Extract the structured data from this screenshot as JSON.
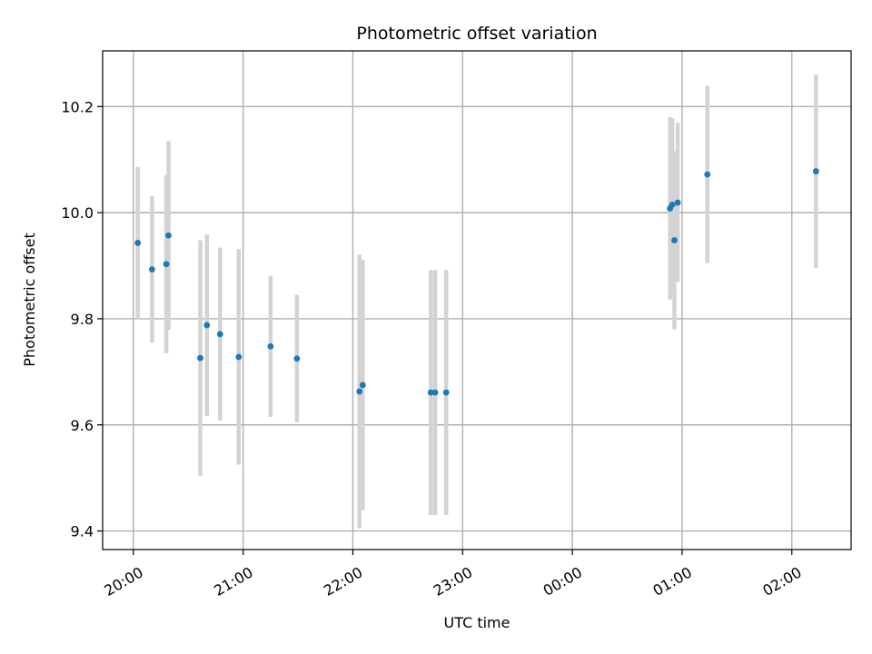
{
  "chart_data": {
    "type": "scatter",
    "title": "Photometric offset variation",
    "xlabel": "UTC time",
    "ylabel": "Photometric offset",
    "x_unit": "hours",
    "xlim": [
      19.72,
      26.54
    ],
    "ylim": [
      9.365,
      10.305
    ],
    "grid": true,
    "x_ticks": [
      {
        "value": 20,
        "label": "20:00"
      },
      {
        "value": 21,
        "label": "21:00"
      },
      {
        "value": 22,
        "label": "22:00"
      },
      {
        "value": 23,
        "label": "23:00"
      },
      {
        "value": 24,
        "label": "00:00"
      },
      {
        "value": 25,
        "label": "01:00"
      },
      {
        "value": 26,
        "label": "02:00"
      }
    ],
    "y_ticks": [
      {
        "value": 9.4,
        "label": "9.4"
      },
      {
        "value": 9.6,
        "label": "9.6"
      },
      {
        "value": 9.8,
        "label": "9.8"
      },
      {
        "value": 10.0,
        "label": "10.0"
      },
      {
        "value": 10.2,
        "label": "10.2"
      }
    ],
    "colors": {
      "marker": "#1f77b4",
      "error": "#d3d3d3",
      "grid": "#b0b0b0"
    },
    "points": [
      {
        "x": 20.04,
        "y": 9.943,
        "err": 0.143
      },
      {
        "x": 20.17,
        "y": 9.893,
        "err": 0.138
      },
      {
        "x": 20.3,
        "y": 9.903,
        "err": 0.168
      },
      {
        "x": 20.32,
        "y": 9.957,
        "err": 0.178
      },
      {
        "x": 20.61,
        "y": 9.726,
        "err": 0.222
      },
      {
        "x": 20.67,
        "y": 9.788,
        "err": 0.171
      },
      {
        "x": 20.79,
        "y": 9.771,
        "err": 0.163
      },
      {
        "x": 20.96,
        "y": 9.728,
        "err": 0.203
      },
      {
        "x": 21.25,
        "y": 9.748,
        "err": 0.133
      },
      {
        "x": 21.49,
        "y": 9.725,
        "err": 0.12
      },
      {
        "x": 22.06,
        "y": 9.663,
        "err": 0.258
      },
      {
        "x": 22.09,
        "y": 9.675,
        "err": 0.236
      },
      {
        "x": 22.71,
        "y": 9.661,
        "err": 0.231
      },
      {
        "x": 22.75,
        "y": 9.661,
        "err": 0.231
      },
      {
        "x": 22.85,
        "y": 9.661,
        "err": 0.231
      },
      {
        "x": 24.89,
        "y": 10.008,
        "err": 0.172
      },
      {
        "x": 24.91,
        "y": 10.015,
        "err": 0.163
      },
      {
        "x": 24.93,
        "y": 9.948,
        "err": 0.168
      },
      {
        "x": 24.96,
        "y": 10.019,
        "err": 0.15
      },
      {
        "x": 25.23,
        "y": 10.072,
        "err": 0.167
      },
      {
        "x": 26.22,
        "y": 10.078,
        "err": 0.182
      }
    ]
  }
}
